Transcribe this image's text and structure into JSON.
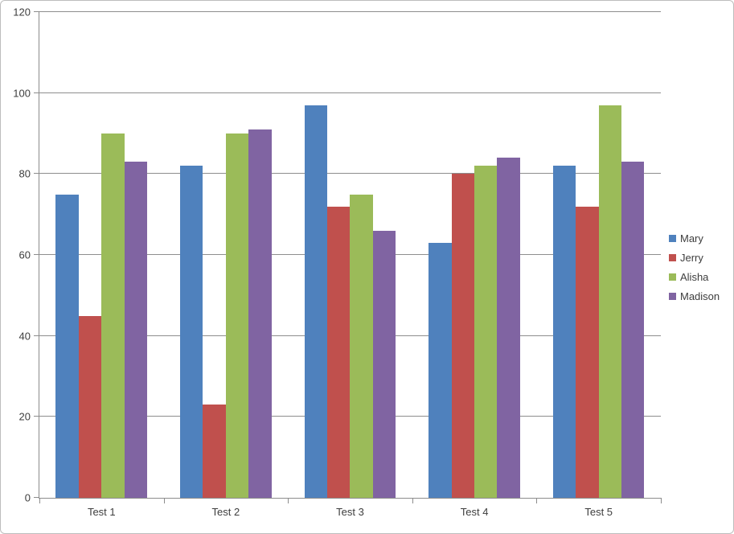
{
  "window": {
    "background": "#ffffff",
    "border_color": "#bdbdbd"
  },
  "chart_data": {
    "type": "bar",
    "title": "",
    "categories": [
      "Test 1",
      "Test 2",
      "Test 3",
      "Test 4",
      "Test 5"
    ],
    "series": [
      {
        "name": "Mary",
        "color": "#4F81BD",
        "values": [
          75,
          82,
          97,
          63,
          82
        ]
      },
      {
        "name": "Jerry",
        "color": "#C0504D",
        "values": [
          45,
          23,
          72,
          80,
          72
        ]
      },
      {
        "name": "Alisha",
        "color": "#9BBB59",
        "values": [
          90,
          90,
          75,
          82,
          97
        ]
      },
      {
        "name": "Madison",
        "color": "#8064A2",
        "values": [
          83,
          91,
          66,
          84,
          83
        ]
      }
    ],
    "xlabel": "",
    "ylabel": "",
    "ylim": [
      0,
      120
    ],
    "ytick_step": 20,
    "ytick_labels": [
      "0",
      "20",
      "40",
      "60",
      "80",
      "100",
      "120"
    ],
    "grid": true,
    "legend_position": "right",
    "gridline_color": "#8e8e8e",
    "axis_color": "#8c8c8c",
    "text_color": "#3d3d3d"
  }
}
